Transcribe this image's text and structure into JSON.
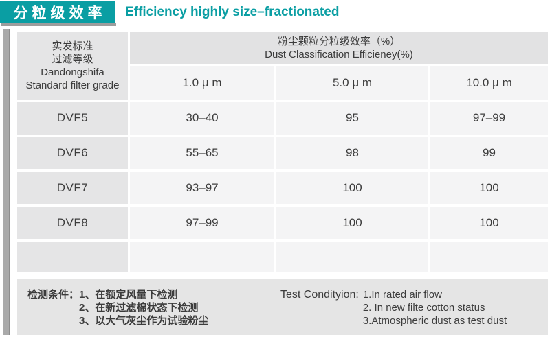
{
  "header": {
    "title_zh": "分粒级效率",
    "title_en": "Efficiency highly size–fractionated"
  },
  "table": {
    "corner": {
      "zh_line1": "实发标准",
      "zh_line2": "过滤等级",
      "en_line1": "Dandongshifa",
      "en_line2": "Standard filter grade"
    },
    "span_header": {
      "zh": "粉尘颗粒分粒级效率（%）",
      "en": "Dust Classification Efficieney(%)"
    },
    "size_columns": [
      "1.0 μ m",
      "5.0 μ m",
      "10.0 μ m"
    ],
    "rows": [
      {
        "grade": "DVF5",
        "v1": "30–40",
        "v5": "95",
        "v10": "97–99"
      },
      {
        "grade": "DVF6",
        "v1": "55–65",
        "v5": "98",
        "v10": "99"
      },
      {
        "grade": "DVF7",
        "v1": "93–97",
        "v5": "100",
        "v10": "100"
      },
      {
        "grade": "DVF8",
        "v1": "97–99",
        "v5": "100",
        "v10": "100"
      },
      {
        "grade": "",
        "v1": "",
        "v5": "",
        "v10": ""
      }
    ]
  },
  "footer": {
    "zh_label": "检测条件：",
    "zh_items": [
      "1、在额定风量下检测",
      "2、在新过滤棉状态下检测",
      "3、以大气灰尘作为试验粉尘"
    ],
    "en_label": "Test Condityion:",
    "en_items": [
      "1.In rated air flow",
      "2. In new filte cotton status",
      "3.Atmospheric dust as test dust"
    ]
  },
  "colors": {
    "accent_teal": "#0a9ea3",
    "header_cell_gray": "#e5e5e6",
    "data_cell_gray": "#f4f4f5",
    "footer_gray": "#e5e5e5"
  }
}
